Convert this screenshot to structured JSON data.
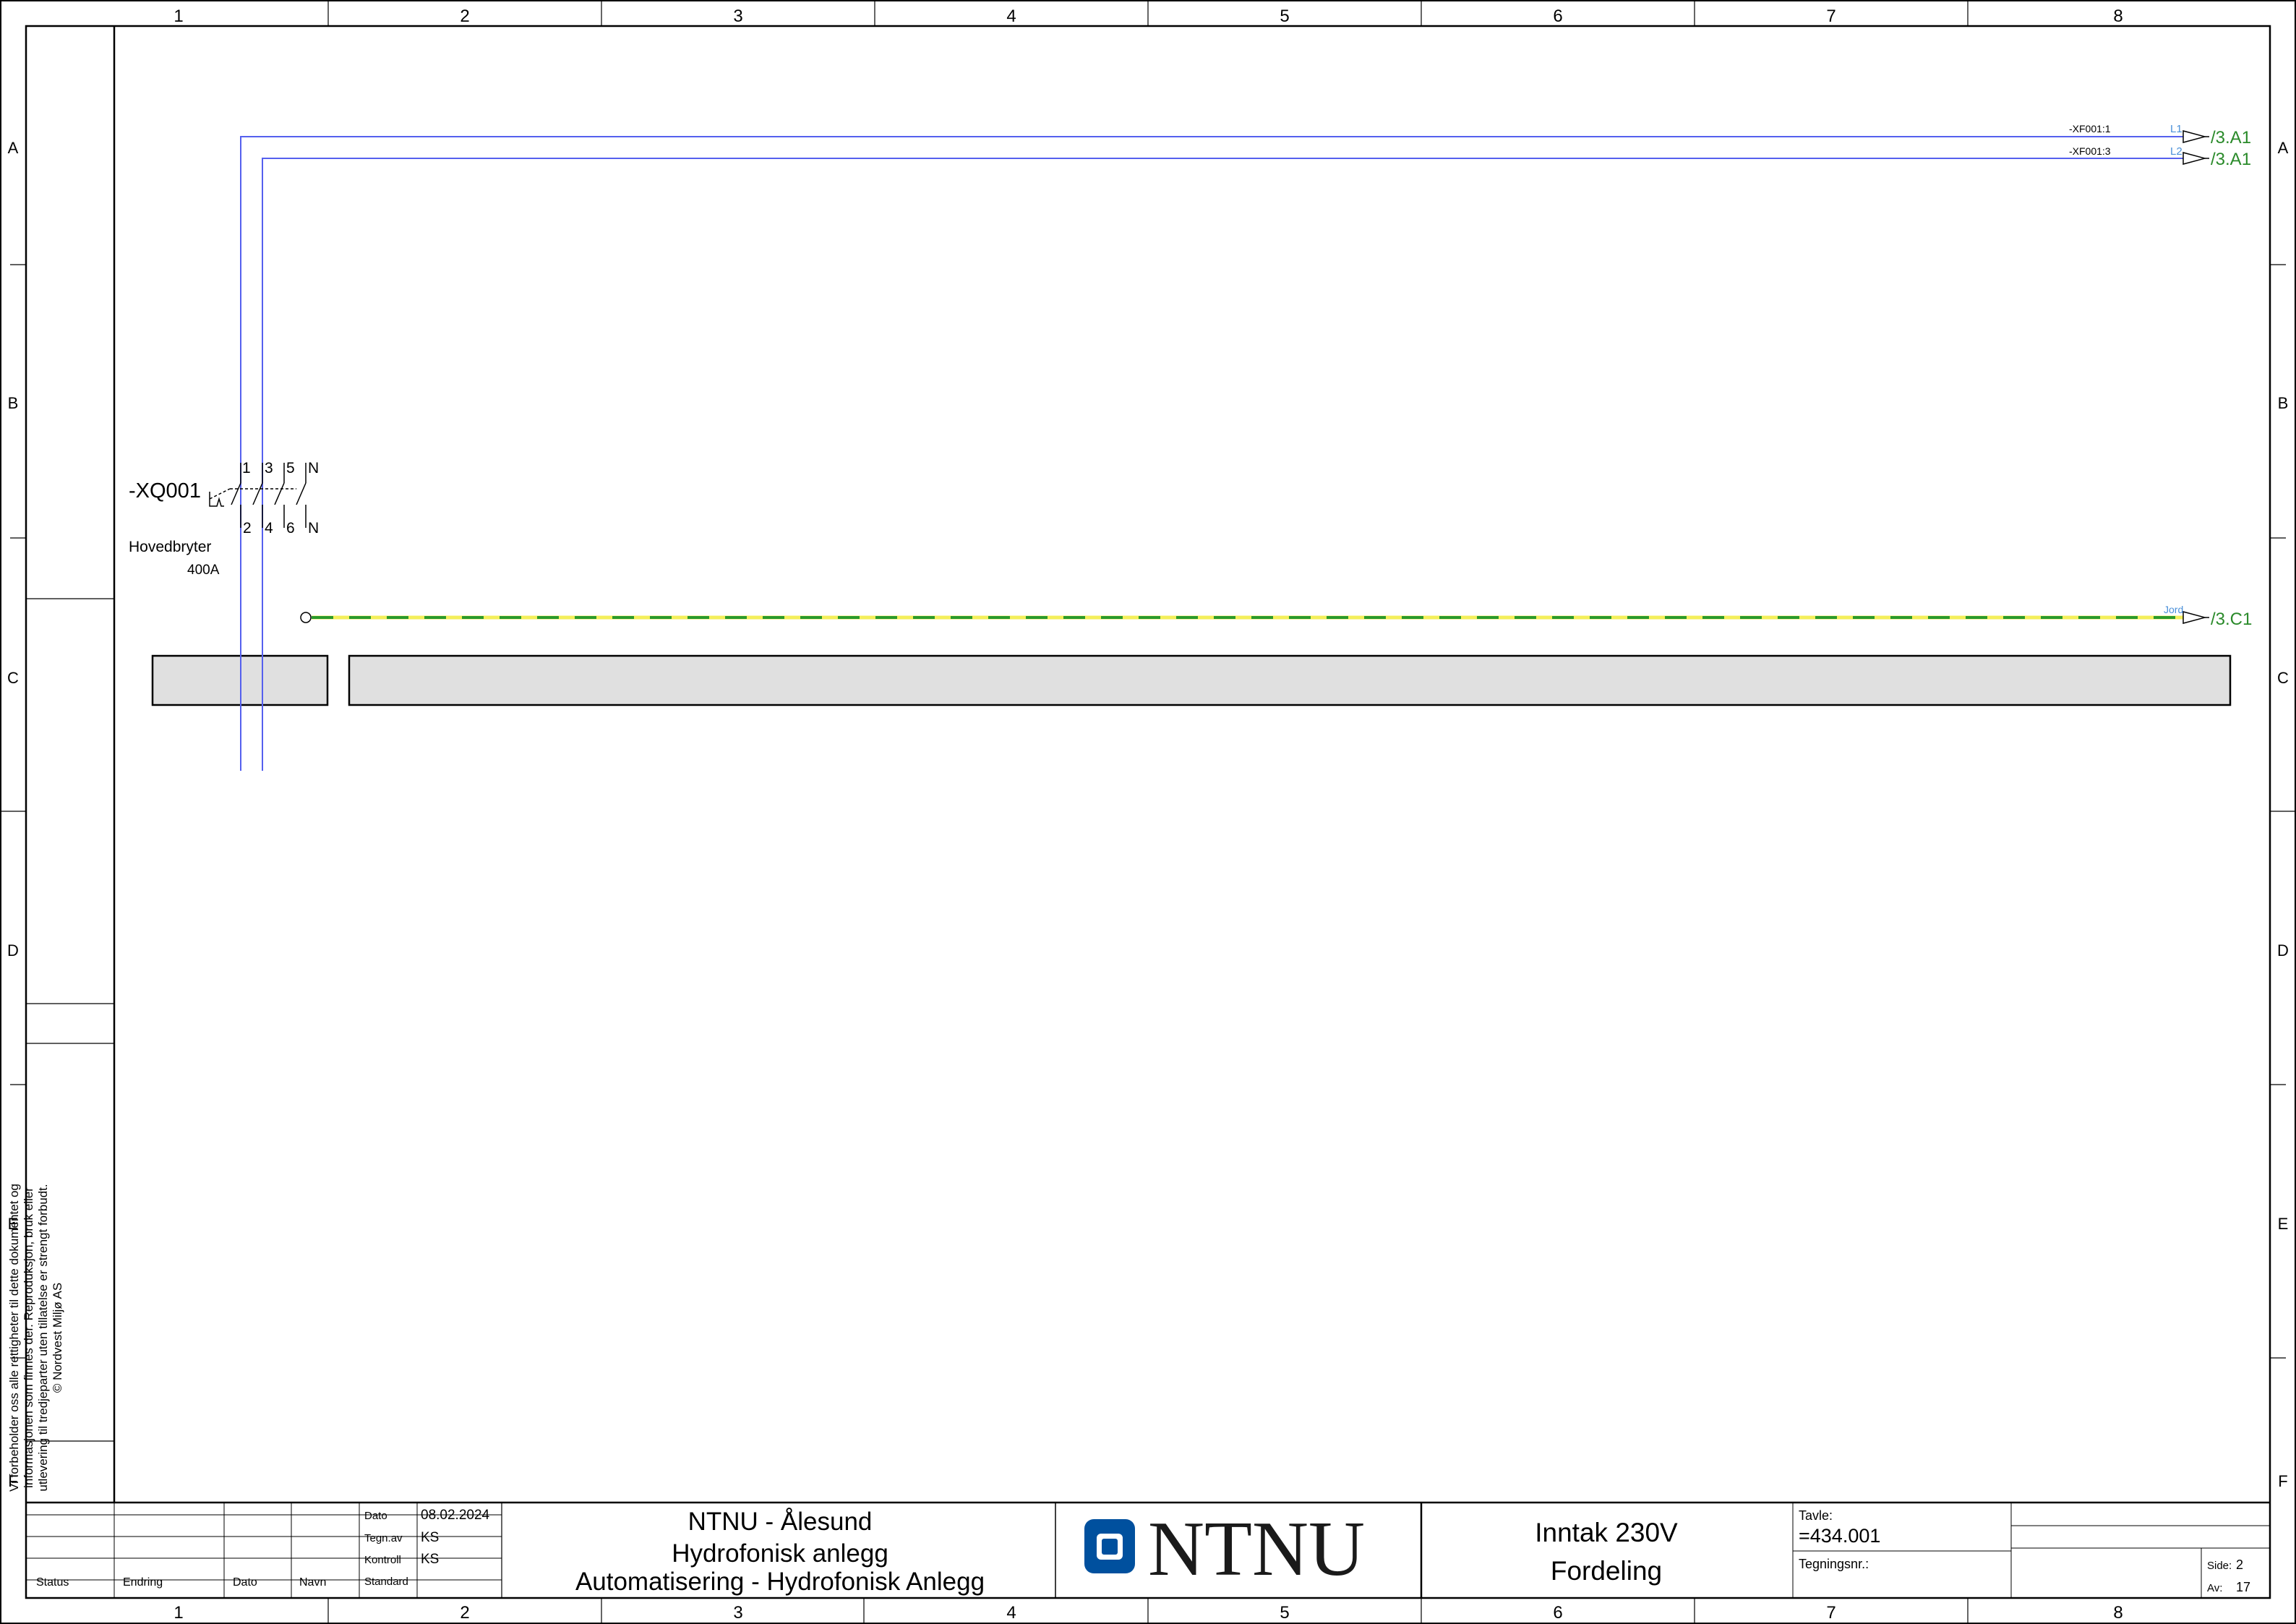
{
  "grid": {
    "columns": [
      "1",
      "2",
      "3",
      "4",
      "5",
      "6",
      "7",
      "8"
    ],
    "rows": [
      "A",
      "B",
      "C",
      "D",
      "E",
      "F"
    ]
  },
  "cross_refs": {
    "l1": {
      "terminal": "-XF001:1",
      "wire": "L1",
      "target": "/3.A1"
    },
    "l2": {
      "terminal": "-XF001:3",
      "wire": "L2",
      "target": "/3.A1"
    },
    "earth": {
      "wire": "Jord",
      "target": "/3.C1"
    }
  },
  "switch": {
    "tag": "-XQ001",
    "name": "Hovedbryter",
    "rating": "400A",
    "top_terminals": [
      "1",
      "3",
      "5",
      "N"
    ],
    "bottom_terminals": [
      "2",
      "4",
      "6",
      "N"
    ]
  },
  "disclaimer": "Vi forbeholder oss alle rettigheter til dette dokumentet og\ninformasjonen som finnes der. Reproduksjon, bruk eller\nutlevering til tredjeparter uten tillatelse er strengt forbudt.\n© Nordvest Miljø AS",
  "title_block": {
    "revision_headers": [
      "Status",
      "Endring",
      "Dato",
      "Navn"
    ],
    "approval": [
      {
        "label": "Dato",
        "value": "08.02.2024"
      },
      {
        "label": "Tegn.av",
        "value": "KS"
      },
      {
        "label": "Kontroll",
        "value": "KS"
      },
      {
        "label": "Standard",
        "value": ""
      }
    ],
    "project_lines": [
      "NTNU - Ålesund",
      "Hydrofonisk anlegg",
      "Automatisering - Hydrofonisk Anlegg"
    ],
    "logo_text": "NTNU",
    "drawing_title": [
      "Inntak 230V",
      "Fordeling"
    ],
    "tavle_label": "Tavle:",
    "tavle_value": "=434.001",
    "tegningsnr_label": "Tegningsnr.:",
    "side_label": "Side:",
    "side_value": "2",
    "av_label": "Av:",
    "av_value": "17"
  },
  "colors": {
    "phase_wire": "#5560ee",
    "earth_green": "#2a9a2a",
    "earth_yellow": "#f4ef5a",
    "ref_text": "#2a8a2a",
    "wire_label": "#4a90d9",
    "box_fill": "#e0e0e0",
    "logo_blue": "#00509e"
  }
}
